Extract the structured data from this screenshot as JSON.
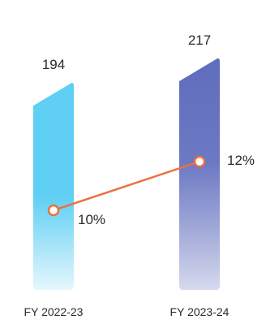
{
  "chart_data": {
    "type": "bar",
    "categories": [
      "FY 2022-23",
      "FY 2023-24"
    ],
    "values": [
      194,
      217
    ],
    "value_labels": [
      "194",
      "217"
    ],
    "line": {
      "values": [
        10,
        12
      ],
      "labels": [
        "10%",
        "12%"
      ]
    },
    "colors": {
      "bar_1_top": "#5fcff4",
      "bar_1_bottom": "#e6f7fd",
      "bar_2_top": "#5f6dbd",
      "bar_2_bottom": "#d6d9ee",
      "line": "#ee6f3f",
      "marker_fill": "#ffffff"
    }
  }
}
